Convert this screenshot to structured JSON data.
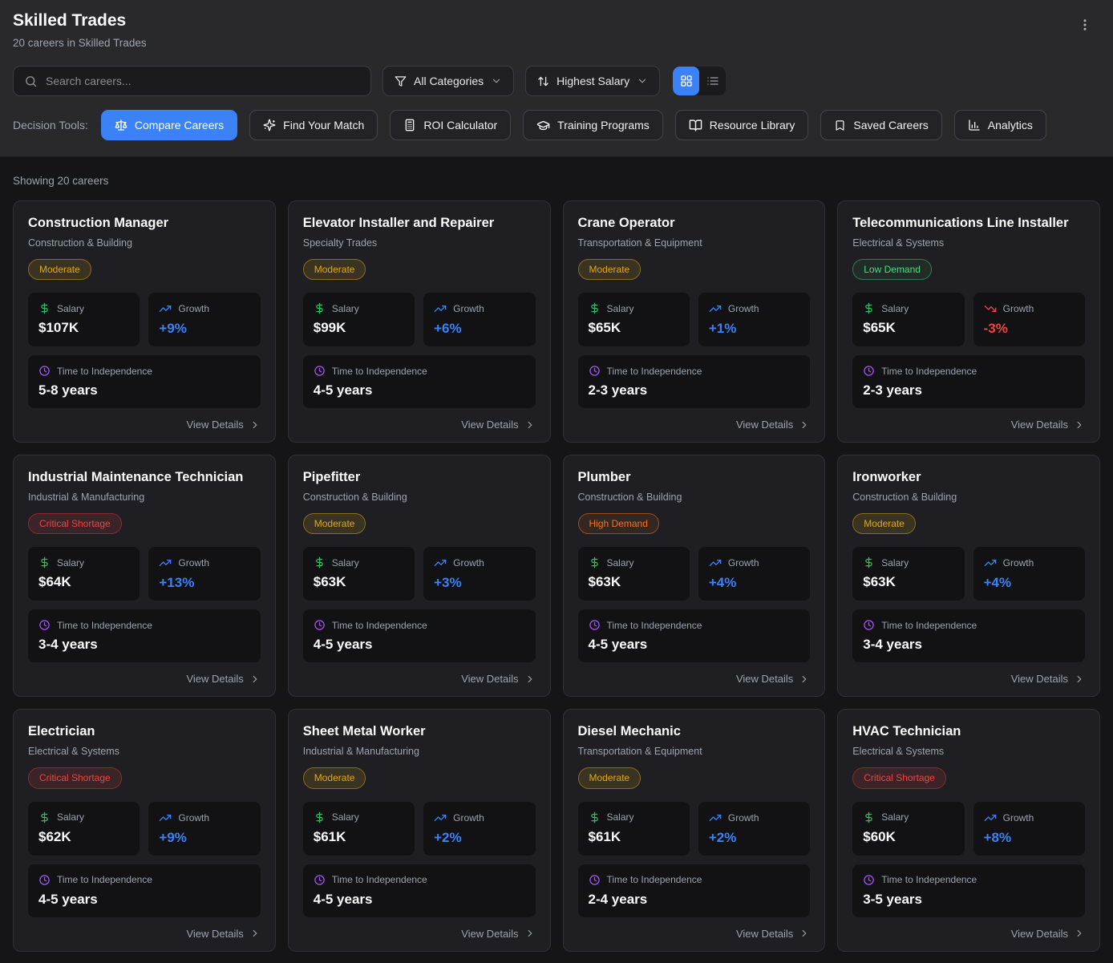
{
  "header": {
    "title": "Skilled Trades",
    "subtitle": "20 careers in Skilled Trades"
  },
  "toolbar": {
    "search_placeholder": "Search careers...",
    "category_filter_label": "All Categories",
    "sort_label": "Highest Salary",
    "active_view": "grid"
  },
  "decision_tools": {
    "label": "Decision Tools:",
    "buttons": [
      {
        "label": "Compare Careers",
        "icon": "scale-icon",
        "active": true
      },
      {
        "label": "Find Your Match",
        "icon": "sparkles-icon",
        "active": false
      },
      {
        "label": "ROI Calculator",
        "icon": "calculator-icon",
        "active": false
      },
      {
        "label": "Training Programs",
        "icon": "graduation-cap-icon",
        "active": false
      },
      {
        "label": "Resource Library",
        "icon": "book-open-icon",
        "active": false
      },
      {
        "label": "Saved Careers",
        "icon": "bookmark-icon",
        "active": false
      },
      {
        "label": "Analytics",
        "icon": "bar-chart-icon",
        "active": false
      }
    ]
  },
  "results": {
    "count_text": "Showing 20 careers"
  },
  "labels": {
    "salary": "Salary",
    "growth": "Growth",
    "tti": "Time to Independence",
    "view_details": "View Details"
  },
  "cards": [
    {
      "title": "Construction Manager",
      "category": "Construction & Building",
      "demand": {
        "label": "Moderate",
        "key": "moderate"
      },
      "salary": "$107K",
      "growth": "+9%",
      "tti": "5-8 years"
    },
    {
      "title": "Elevator Installer and Repairer",
      "category": "Specialty Trades",
      "demand": {
        "label": "Moderate",
        "key": "moderate"
      },
      "salary": "$99K",
      "growth": "+6%",
      "tti": "4-5 years"
    },
    {
      "title": "Crane Operator",
      "category": "Transportation & Equipment",
      "demand": {
        "label": "Moderate",
        "key": "moderate"
      },
      "salary": "$65K",
      "growth": "+1%",
      "tti": "2-3 years"
    },
    {
      "title": "Telecommunications Line Installer",
      "category": "Electrical & Systems",
      "demand": {
        "label": "Low Demand",
        "key": "low"
      },
      "salary": "$65K",
      "growth": "-3%",
      "tti": "2-3 years"
    },
    {
      "title": "Industrial Maintenance Technician",
      "category": "Industrial & Manufacturing",
      "demand": {
        "label": "Critical Shortage",
        "key": "critical"
      },
      "salary": "$64K",
      "growth": "+13%",
      "tti": "3-4 years"
    },
    {
      "title": "Pipefitter",
      "category": "Construction & Building",
      "demand": {
        "label": "Moderate",
        "key": "moderate"
      },
      "salary": "$63K",
      "growth": "+3%",
      "tti": "4-5 years"
    },
    {
      "title": "Plumber",
      "category": "Construction & Building",
      "demand": {
        "label": "High Demand",
        "key": "high"
      },
      "salary": "$63K",
      "growth": "+4%",
      "tti": "4-5 years"
    },
    {
      "title": "Ironworker",
      "category": "Construction & Building",
      "demand": {
        "label": "Moderate",
        "key": "moderate"
      },
      "salary": "$63K",
      "growth": "+4%",
      "tti": "3-4 years"
    },
    {
      "title": "Electrician",
      "category": "Electrical & Systems",
      "demand": {
        "label": "Critical Shortage",
        "key": "critical"
      },
      "salary": "$62K",
      "growth": "+9%",
      "tti": "4-5 years"
    },
    {
      "title": "Sheet Metal Worker",
      "category": "Industrial & Manufacturing",
      "demand": {
        "label": "Moderate",
        "key": "moderate"
      },
      "salary": "$61K",
      "growth": "+2%",
      "tti": "4-5 years"
    },
    {
      "title": "Diesel Mechanic",
      "category": "Transportation & Equipment",
      "demand": {
        "label": "Moderate",
        "key": "moderate"
      },
      "salary": "$61K",
      "growth": "+2%",
      "tti": "2-4 years"
    },
    {
      "title": "HVAC Technician",
      "category": "Electrical & Systems",
      "demand": {
        "label": "Critical Shortage",
        "key": "critical"
      },
      "salary": "$60K",
      "growth": "+8%",
      "tti": "3-5 years"
    }
  ],
  "theme": {
    "accent": "#3b82f6",
    "growth_positive": "#3b82f6",
    "growth_negative": "#ef4444",
    "salary_green": "#22c55e",
    "clock_purple": "#a855f7",
    "badges": {
      "moderate": {
        "text": "#e0a912",
        "border": "#8a6d1a",
        "bg": "rgba(202,158,26,0.16)"
      },
      "low": {
        "text": "#4ade80",
        "border": "#2f7d4f",
        "bg": "rgba(74,222,128,0.07)"
      },
      "high": {
        "text": "#f97316",
        "border": "#9a4d1b",
        "bg": "rgba(249,115,22,0.10)"
      },
      "critical": {
        "text": "#ef4444",
        "border": "#8a2a2a",
        "bg": "rgba(239,68,68,0.13)"
      }
    }
  }
}
